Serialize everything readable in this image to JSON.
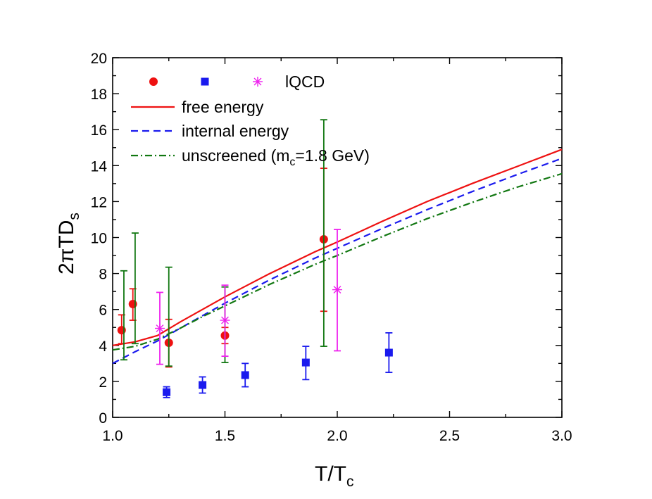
{
  "chart_data": {
    "type": "scatter",
    "xlabel": {
      "main": "T/T",
      "sub": "c"
    },
    "ylabel": {
      "main": "2πTD",
      "sub": "s"
    },
    "xlim": [
      1.0,
      3.0
    ],
    "ylim": [
      0,
      20
    ],
    "x_ticks": [
      "1.0",
      "1.5",
      "2.0",
      "2.5",
      "3.0"
    ],
    "x_tick_values": [
      1.0,
      1.5,
      2.0,
      2.5,
      3.0
    ],
    "y_ticks": [
      "0",
      "2",
      "4",
      "6",
      "8",
      "10",
      "12",
      "14",
      "16",
      "18",
      "20"
    ],
    "y_tick_values": [
      0,
      2,
      4,
      6,
      8,
      10,
      12,
      14,
      16,
      18,
      20
    ],
    "grid": false,
    "legend_position": "top-left",
    "legend": {
      "lqcd_label": "lQCD",
      "lines": [
        {
          "label": "free energy",
          "color": "#ee1111",
          "style": "solid"
        },
        {
          "label": "internal energy",
          "color": "#1a1aee",
          "style": "dashed"
        },
        {
          "label": "unscreened (m",
          "sub": "c",
          "label_tail": "=1.8 GeV)",
          "color": "#117711",
          "style": "dashdot"
        }
      ]
    },
    "series": [
      {
        "marker": "circle",
        "color": "#ee1111",
        "points": [
          {
            "x": 1.04,
            "y": 4.85,
            "lo": 4.1,
            "hi": 5.7
          },
          {
            "x": 1.09,
            "y": 6.3,
            "lo": 5.4,
            "hi": 7.15
          },
          {
            "x": 1.25,
            "y": 4.15,
            "lo": 2.8,
            "hi": 5.45
          },
          {
            "x": 1.5,
            "y": 4.55,
            "lo": 4.1,
            "hi": 5.0
          },
          {
            "x": 1.94,
            "y": 9.9,
            "lo": 5.9,
            "hi": 13.85
          }
        ]
      },
      {
        "marker": "error-only",
        "color": "#117711",
        "points": [
          {
            "x": 1.05,
            "lo": 3.2,
            "hi": 8.15
          },
          {
            "x": 1.1,
            "lo": 4.1,
            "hi": 10.25
          },
          {
            "x": 1.25,
            "lo": 2.85,
            "hi": 8.35
          },
          {
            "x": 1.5,
            "lo": 3.05,
            "hi": 7.25
          },
          {
            "x": 1.94,
            "lo": 3.95,
            "hi": 16.55
          }
        ]
      },
      {
        "marker": "square",
        "color": "#1a1aee",
        "points": [
          {
            "x": 1.24,
            "y": 1.4,
            "lo": 1.1,
            "hi": 1.7
          },
          {
            "x": 1.4,
            "y": 1.8,
            "lo": 1.35,
            "hi": 2.25
          },
          {
            "x": 1.59,
            "y": 2.35,
            "lo": 1.7,
            "hi": 3.0
          },
          {
            "x": 1.86,
            "y": 3.05,
            "lo": 2.1,
            "hi": 3.95
          },
          {
            "x": 2.23,
            "y": 3.6,
            "lo": 2.5,
            "hi": 4.7
          }
        ]
      },
      {
        "marker": "asterisk",
        "color": "#ee22ee",
        "points": [
          {
            "x": 1.21,
            "y": 4.95,
            "lo": 2.95,
            "hi": 6.95
          },
          {
            "x": 1.5,
            "y": 5.4,
            "lo": 3.4,
            "hi": 7.35
          },
          {
            "x": 2.0,
            "y": 7.1,
            "lo": 3.7,
            "hi": 10.45
          }
        ]
      }
    ],
    "lines": [
      {
        "name": "free energy",
        "color": "#ee1111",
        "style": "solid",
        "x": [
          1.0,
          1.1,
          1.2,
          1.3,
          1.4,
          1.5,
          1.6,
          1.7,
          1.8,
          1.9,
          2.0,
          2.2,
          2.4,
          2.6,
          2.8,
          3.0
        ],
        "y": [
          4.0,
          4.2,
          4.55,
          5.3,
          6.0,
          6.7,
          7.35,
          8.0,
          8.6,
          9.2,
          9.75,
          10.9,
          12.0,
          13.0,
          13.95,
          14.9
        ]
      },
      {
        "name": "internal energy",
        "color": "#1a1aee",
        "style": "dashed",
        "x": [
          1.0,
          1.1,
          1.2,
          1.3,
          1.4,
          1.5,
          1.6,
          1.7,
          1.8,
          1.9,
          2.0,
          2.2,
          2.4,
          2.6,
          2.8,
          3.0
        ],
        "y": [
          3.0,
          3.65,
          4.25,
          4.95,
          5.65,
          6.35,
          7.0,
          7.65,
          8.25,
          8.85,
          9.4,
          10.5,
          11.55,
          12.55,
          13.5,
          14.4
        ]
      },
      {
        "name": "unscreened (m_c=1.8 GeV)",
        "color": "#117711",
        "style": "dashdot",
        "x": [
          1.0,
          1.1,
          1.2,
          1.3,
          1.4,
          1.5,
          1.6,
          1.7,
          1.8,
          1.9,
          2.0,
          2.2,
          2.4,
          2.6,
          2.8,
          3.0
        ],
        "y": [
          3.75,
          3.95,
          4.35,
          4.95,
          5.6,
          6.2,
          6.8,
          7.4,
          7.95,
          8.5,
          9.0,
          10.05,
          11.05,
          11.95,
          12.8,
          13.55
        ]
      }
    ]
  }
}
